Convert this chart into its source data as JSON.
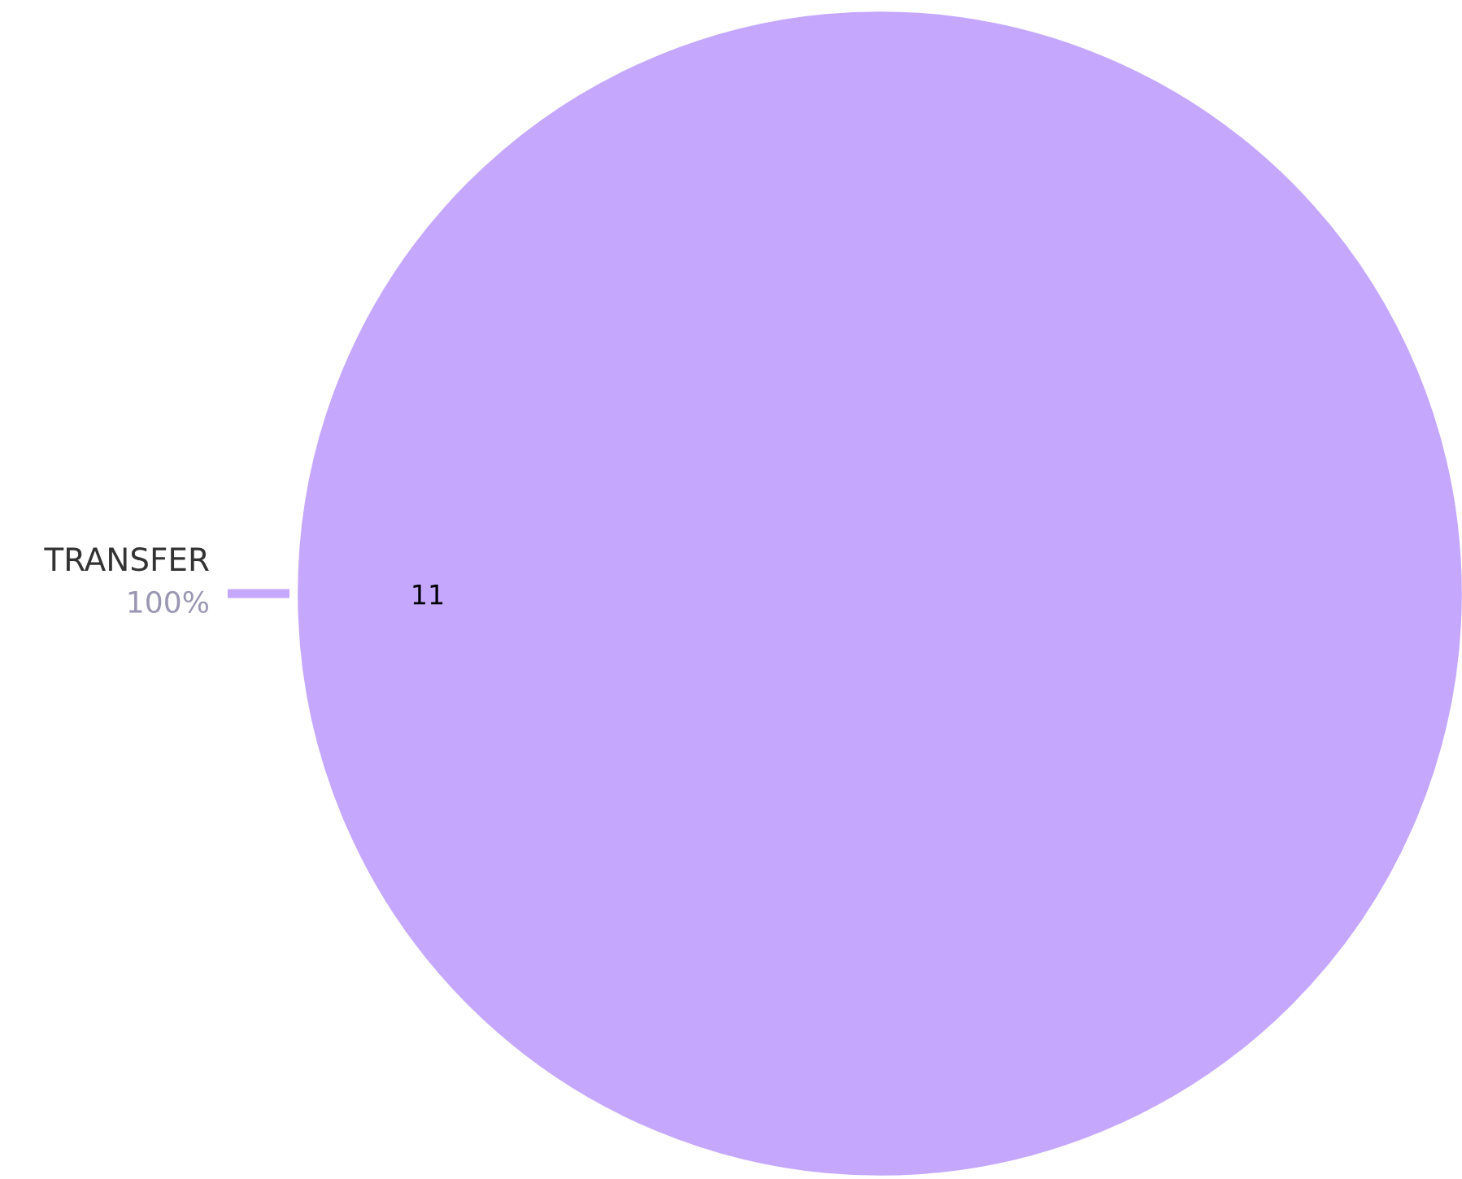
{
  "chart_data": {
    "type": "pie",
    "categories": [
      "TRANSFER"
    ],
    "values": [
      11
    ],
    "colors": [
      "#c5a8fe"
    ],
    "data_labels": true,
    "annotations": [
      "100%"
    ]
  }
}
